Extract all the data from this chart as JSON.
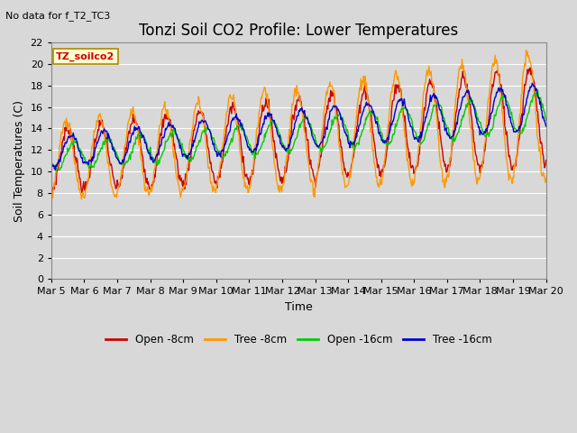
{
  "title": "Tonzi Soil CO2 Profile: Lower Temperatures",
  "subtitle": "No data for f_T2_TC3",
  "ylabel": "Soil Temperatures (C)",
  "xlabel": "Time",
  "legend_label": "TZ_soilco2",
  "ylim": [
    0,
    22
  ],
  "yticks": [
    0,
    2,
    4,
    6,
    8,
    10,
    12,
    14,
    16,
    18,
    20,
    22
  ],
  "xtick_labels": [
    "Mar 5",
    "Mar 6",
    "Mar 7",
    "Mar 8",
    "Mar 9",
    "Mar 10",
    "Mar 11",
    "Mar 12",
    "Mar 13",
    "Mar 14",
    "Mar 15",
    "Mar 16",
    "Mar 17",
    "Mar 18",
    "Mar 19",
    "Mar 20"
  ],
  "series_colors": {
    "open_8cm": "#cc0000",
    "tree_8cm": "#ff9900",
    "open_16cm": "#00cc00",
    "tree_16cm": "#0000cc"
  },
  "series_labels": [
    "Open -8cm",
    "Tree -8cm",
    "Open -16cm",
    "Tree -16cm"
  ],
  "bg_color": "#d8d8d8",
  "plot_bg_color": "#d8d8d8",
  "grid_color": "#ffffff",
  "title_fontsize": 12,
  "axis_fontsize": 9,
  "tick_fontsize": 8,
  "linewidth": 1.0
}
